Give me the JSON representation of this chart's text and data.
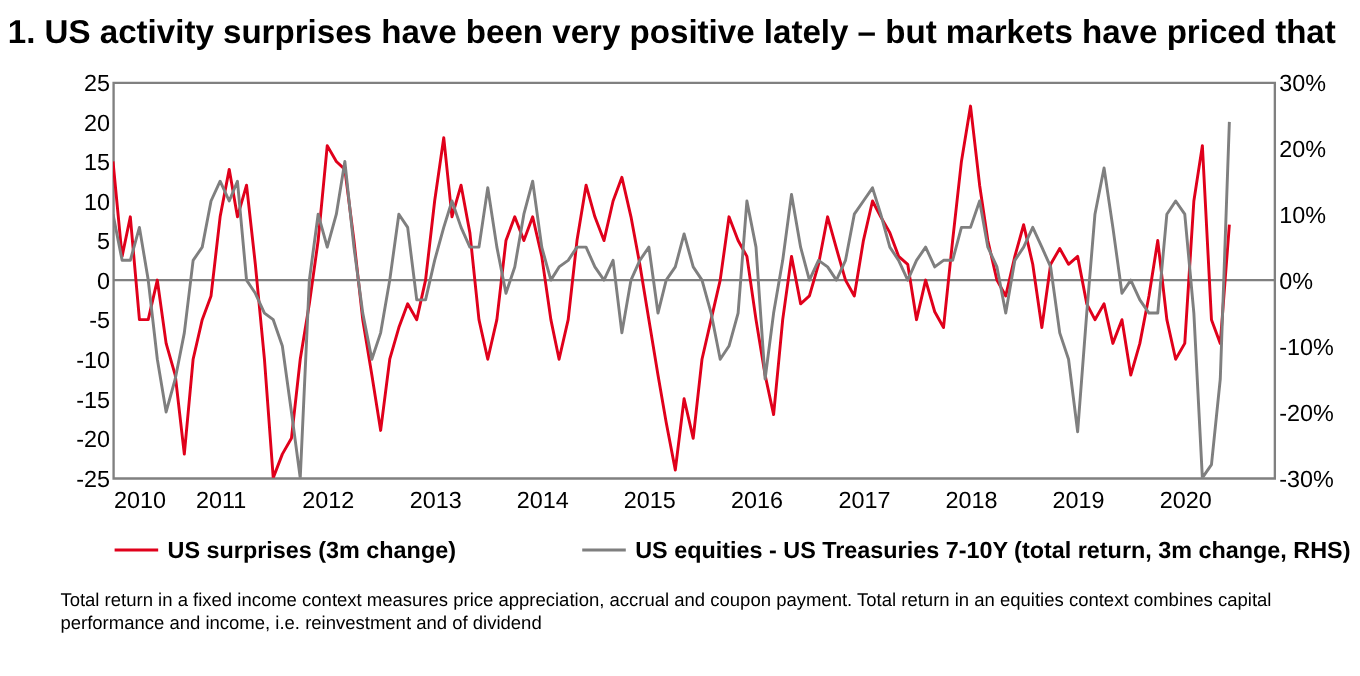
{
  "chart_data": {
    "type": "line",
    "title": "1. US activity surprises have been very positive lately – but markets have priced that",
    "x": [
      "2010-01",
      "2010-02",
      "2010-03",
      "2010-04",
      "2010-05",
      "2010-06",
      "2010-07",
      "2010-08",
      "2010-09",
      "2010-10",
      "2010-11",
      "2010-12",
      "2011-01",
      "2011-02",
      "2011-03",
      "2011-04",
      "2011-05",
      "2011-06",
      "2011-07",
      "2011-08",
      "2011-09",
      "2011-10",
      "2011-11",
      "2011-12",
      "2012-01",
      "2012-02",
      "2012-03",
      "2012-04",
      "2012-05",
      "2012-06",
      "2012-07",
      "2012-08",
      "2012-09",
      "2012-10",
      "2012-11",
      "2012-12",
      "2013-01",
      "2013-02",
      "2013-03",
      "2013-04",
      "2013-05",
      "2013-06",
      "2013-07",
      "2013-08",
      "2013-09",
      "2013-10",
      "2013-11",
      "2013-12",
      "2014-01",
      "2014-02",
      "2014-03",
      "2014-04",
      "2014-05",
      "2014-06",
      "2014-07",
      "2014-08",
      "2014-09",
      "2014-10",
      "2014-11",
      "2014-12",
      "2015-01",
      "2015-02",
      "2015-03",
      "2015-04",
      "2015-05",
      "2015-06",
      "2015-07",
      "2015-08",
      "2015-09",
      "2015-10",
      "2015-11",
      "2015-12",
      "2016-01",
      "2016-02",
      "2016-03",
      "2016-04",
      "2016-05",
      "2016-06",
      "2016-07",
      "2016-08",
      "2016-09",
      "2016-10",
      "2016-11",
      "2016-12",
      "2017-01",
      "2017-02",
      "2017-03",
      "2017-04",
      "2017-05",
      "2017-06",
      "2017-07",
      "2017-08",
      "2017-09",
      "2017-10",
      "2017-11",
      "2017-12",
      "2018-01",
      "2018-02",
      "2018-03",
      "2018-04",
      "2018-05",
      "2018-06",
      "2018-07",
      "2018-08",
      "2018-09",
      "2018-10",
      "2018-11",
      "2018-12",
      "2019-01",
      "2019-02",
      "2019-03",
      "2019-04",
      "2019-05",
      "2019-06",
      "2019-07",
      "2019-08",
      "2019-09",
      "2019-10",
      "2019-11",
      "2019-12",
      "2020-01",
      "2020-02",
      "2020-03",
      "2020-04",
      "2020-05",
      "2020-06"
    ],
    "series": [
      {
        "name": "US surprises (3m change)",
        "color": "#e0001b",
        "values": [
          15,
          3,
          8,
          -5,
          -5,
          0,
          -8,
          -12,
          -22,
          -10,
          -5,
          -2,
          8,
          14,
          8,
          12,
          2,
          -10,
          -25,
          -22,
          -20,
          -10,
          -3,
          5,
          17,
          15,
          14,
          5,
          -5,
          -12,
          -19,
          -10,
          -6,
          -3,
          -5,
          0,
          10,
          18,
          8,
          12,
          6,
          -5,
          -10,
          -5,
          5,
          8,
          5,
          8,
          3,
          -5,
          -10,
          -5,
          5,
          12,
          8,
          5,
          10,
          13,
          8,
          2,
          -5,
          -12,
          -18,
          -24,
          -15,
          -20,
          -10,
          -5,
          0,
          8,
          5,
          3,
          -5,
          -12,
          -17,
          -5,
          3,
          -3,
          -2,
          2,
          8,
          4,
          0,
          -2,
          5,
          10,
          8,
          6,
          3,
          2,
          -5,
          0,
          -4,
          -6,
          5,
          15,
          22,
          12,
          5,
          0,
          -2,
          3,
          7,
          2,
          -6,
          2,
          4,
          2,
          3,
          -3,
          -5,
          -3,
          -8,
          -5,
          -12,
          -8,
          -2,
          5,
          -5,
          -10,
          -8,
          10,
          17,
          -5,
          -8,
          7
        ]
      },
      {
        "name": "US equities - US Treasuries 7-10Y (total return, 3m change, RHS)",
        "color": "#7f7f7f",
        "axis": "y2",
        "values": [
          10,
          3,
          3,
          8,
          0,
          -12,
          -20,
          -15,
          -8,
          3,
          5,
          12,
          15,
          12,
          15,
          0,
          -2,
          -5,
          -6,
          -10,
          -20,
          -30,
          0,
          10,
          5,
          10,
          18,
          5,
          -5,
          -12,
          -8,
          0,
          10,
          8,
          -3,
          -3,
          3,
          8,
          12,
          8,
          5,
          5,
          14,
          5,
          -2,
          2,
          10,
          15,
          5,
          0,
          2,
          3,
          5,
          5,
          2,
          0,
          3,
          -8,
          0,
          3,
          5,
          -5,
          0,
          2,
          7,
          2,
          0,
          -5,
          -12,
          -10,
          -5,
          12,
          5,
          -15,
          -5,
          3,
          13,
          5,
          0,
          3,
          2,
          0,
          3,
          10,
          12,
          14,
          10,
          5,
          3,
          0,
          3,
          5,
          2,
          3,
          3,
          8,
          8,
          12,
          5,
          2,
          -5,
          3,
          5,
          8,
          5,
          2,
          -8,
          -12,
          -23,
          -5,
          10,
          17,
          8,
          -2,
          0,
          -3,
          -5,
          -5,
          10,
          12,
          10,
          -5,
          -30,
          -28,
          -15,
          24
        ]
      }
    ],
    "xlim": [
      "2010-01",
      "2020-11"
    ],
    "xticks": [
      "2010",
      "2011",
      "2012",
      "2013",
      "2014",
      "2015",
      "2016",
      "2017",
      "2018",
      "2019",
      "2020"
    ],
    "ylim": [
      -25,
      25
    ],
    "yticks": [
      -25,
      -20,
      -15,
      -10,
      -5,
      0,
      5,
      10,
      15,
      20,
      25
    ],
    "y2lim": [
      -30,
      30
    ],
    "y2ticks": [
      {
        "value": -30,
        "label": "-30%"
      },
      {
        "value": -20,
        "label": "-20%"
      },
      {
        "value": -10,
        "label": "-10%"
      },
      {
        "value": 0,
        "label": "0%"
      },
      {
        "value": 10,
        "label": "10%"
      },
      {
        "value": 20,
        "label": "20%"
      },
      {
        "value": 30,
        "label": "30%"
      }
    ],
    "ref_lines": [
      {
        "axis": "y",
        "value": 0,
        "color": "#808080"
      }
    ],
    "grid": false,
    "legend": "bottom",
    "annotations": [
      "Total return in a fixed income context measures price appreciation, accrual and coupon payment. Total return in an equities context combines capital performance and income, i.e. reinvestment and of dividend"
    ]
  }
}
